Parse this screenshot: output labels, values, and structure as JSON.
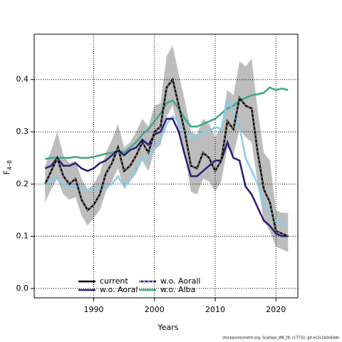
{
  "chart_data": {
    "type": "line",
    "xlabel": "Years",
    "ylabel": "F",
    "ylabel_subscript": "4–8",
    "footnote": "stockassessment.org, Scallops_WK_fit, r17732, git:ec2c2a0c6dde",
    "x": [
      1982,
      1983,
      1984,
      1985,
      1986,
      1987,
      1988,
      1989,
      1990,
      1991,
      1992,
      1993,
      1994,
      1995,
      1996,
      1997,
      1998,
      1999,
      2000,
      2001,
      2002,
      2003,
      2004,
      2005,
      2006,
      2007,
      2008,
      2009,
      2010,
      2011,
      2012,
      2013,
      2014,
      2015,
      2016,
      2017,
      2018,
      2019,
      2020,
      2021,
      2022
    ],
    "xlim": [
      1980.2,
      2023.6
    ],
    "xticks": [
      1990,
      2000,
      2010,
      2020
    ],
    "ylim": [
      -0.018,
      0.487
    ],
    "yticks": [
      {
        "value": 0,
        "label": "0.0"
      },
      0.1,
      0.2,
      0.3,
      0.4
    ],
    "grid": true,
    "band": {
      "color": "#bdbdbd",
      "lower": [
        0.165,
        0.19,
        0.21,
        0.18,
        0.17,
        0.175,
        0.14,
        0.12,
        0.135,
        0.15,
        0.185,
        0.205,
        0.23,
        0.19,
        0.205,
        0.22,
        0.245,
        0.225,
        0.265,
        0.275,
        0.33,
        0.35,
        0.3,
        0.255,
        0.185,
        0.18,
        0.21,
        0.205,
        0.185,
        0.205,
        0.27,
        0.255,
        0.305,
        0.29,
        0.28,
        0.2,
        0.13,
        0.11,
        0.08,
        0.075,
        0.07
      ],
      "upper": [
        0.235,
        0.265,
        0.3,
        0.255,
        0.24,
        0.245,
        0.21,
        0.19,
        0.2,
        0.22,
        0.26,
        0.285,
        0.315,
        0.27,
        0.28,
        0.3,
        0.325,
        0.31,
        0.35,
        0.355,
        0.445,
        0.465,
        0.41,
        0.36,
        0.3,
        0.295,
        0.325,
        0.315,
        0.29,
        0.31,
        0.38,
        0.37,
        0.435,
        0.425,
        0.44,
        0.34,
        0.26,
        0.245,
        0.15,
        0.145,
        0.145
      ]
    },
    "series": [
      {
        "name": "current",
        "color": "#000000",
        "dash": "gray",
        "values": [
          0.2,
          0.225,
          0.25,
          0.215,
          0.2,
          0.21,
          0.17,
          0.15,
          0.16,
          0.18,
          0.22,
          0.24,
          0.27,
          0.225,
          0.235,
          0.255,
          0.28,
          0.26,
          0.3,
          0.31,
          0.385,
          0.4,
          0.35,
          0.3,
          0.235,
          0.23,
          0.26,
          0.25,
          0.225,
          0.245,
          0.32,
          0.305,
          0.365,
          0.35,
          0.345,
          0.26,
          0.19,
          0.165,
          0.11,
          0.105,
          0.1
        ]
      },
      {
        "name": "w.o. Aoral",
        "color": "#2d1b78",
        "values": [
          0.23,
          0.235,
          0.25,
          0.235,
          0.235,
          0.24,
          0.23,
          0.225,
          0.23,
          0.24,
          0.245,
          0.255,
          0.265,
          0.255,
          0.265,
          0.27,
          0.285,
          0.275,
          0.295,
          0.3,
          0.325,
          0.325,
          0.3,
          0.255,
          0.215,
          0.215,
          0.225,
          0.235,
          0.245,
          0.245,
          0.28,
          0.25,
          0.245,
          0.195,
          0.18,
          0.155,
          0.13,
          0.12,
          0.105,
          0.1,
          0.1
        ]
      },
      {
        "name": "w.o. Aorall",
        "color": "#87ceeb",
        "values": [
          0.195,
          0.21,
          0.21,
          0.2,
          0.195,
          0.195,
          0.195,
          0.185,
          0.19,
          0.19,
          0.195,
          0.2,
          0.215,
          0.195,
          0.21,
          0.23,
          0.25,
          0.245,
          0.27,
          0.285,
          0.315,
          0.33,
          0.32,
          0.295,
          0.29,
          0.29,
          0.3,
          0.3,
          0.31,
          0.305,
          0.36,
          0.34,
          0.31,
          0.25,
          0.225,
          0.2,
          0.16,
          0.145,
          0.13,
          0.125,
          0.12
        ]
      },
      {
        "name": "w.o. Alba",
        "color": "#3aa88a",
        "values": [
          0.248,
          0.25,
          0.25,
          0.25,
          0.25,
          0.252,
          0.25,
          0.25,
          0.252,
          0.255,
          0.258,
          0.26,
          0.265,
          0.26,
          0.27,
          0.28,
          0.295,
          0.305,
          0.32,
          0.335,
          0.355,
          0.36,
          0.345,
          0.325,
          0.31,
          0.31,
          0.315,
          0.32,
          0.325,
          0.335,
          0.345,
          0.35,
          0.36,
          0.365,
          0.37,
          0.372,
          0.375,
          0.385,
          0.38,
          0.383,
          0.38
        ]
      }
    ]
  }
}
